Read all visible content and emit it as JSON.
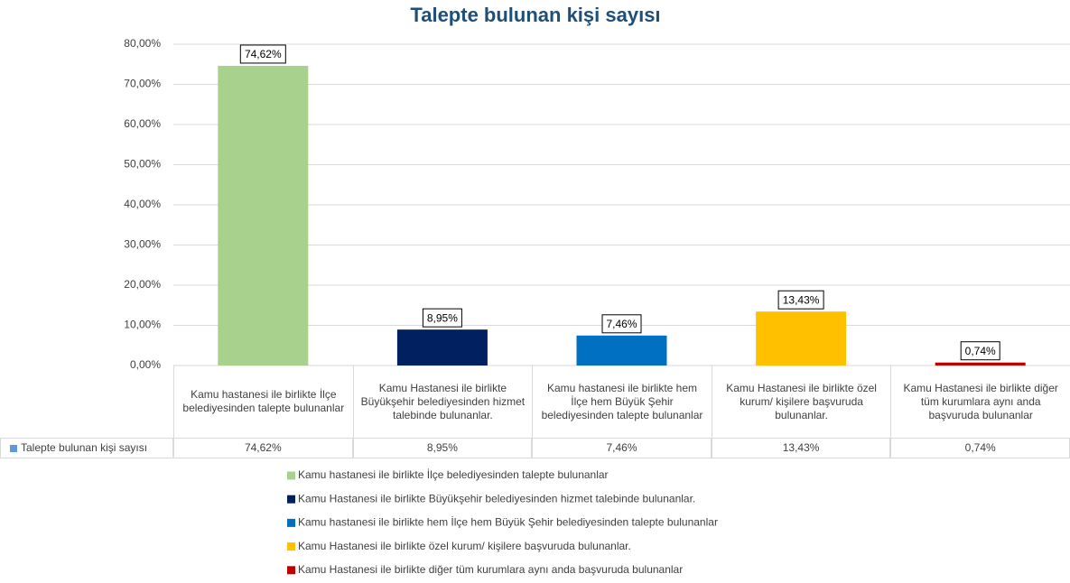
{
  "chart_data": {
    "type": "bar",
    "title": "Talepte bulunan kişi sayısı",
    "categories": [
      "Kamu hastanesi ile birlikte İlçe belediyesinden talepte bulunanlar",
      "Kamu Hastanesi ile birlikte Büyükşehir belediyesinden hizmet talebinde bulunanlar.",
      "Kamu hastanesi ile birlikte hem İlçe hem Büyük Şehir belediyesinden talepte bulunanlar",
      "Kamu Hastanesi ile birlikte özel kurum/ kişilere başvuruda bulunanlar.",
      "Kamu Hastanesi ile birlikte diğer tüm kurumlara aynı anda başvuruda bulunanlar"
    ],
    "series": [
      {
        "name": "Talepte bulunan kişi sayısı",
        "color": "#5b9bd5",
        "values": [
          74.62,
          8.95,
          7.46,
          13.43,
          0.74
        ],
        "value_labels": [
          "74,62%",
          "8,95%",
          "7,46%",
          "13,43%",
          "0,74%"
        ]
      }
    ],
    "colors": [
      "#a9d18e",
      "#002060",
      "#0070c0",
      "#ffc000",
      "#c00000"
    ],
    "legend": [
      "Kamu hastanesi ile birlikte İlçe belediyesinden talepte bulunanlar",
      "Kamu Hastanesi ile birlikte Büyükşehir belediyesinden hizmet talebinde bulunanlar.",
      "Kamu hastanesi ile birlikte hem İlçe hem Büyük Şehir belediyesinden talepte bulunanlar",
      "Kamu Hastanesi ile birlikte  özel kurum/ kişilere  başvuruda bulunanlar.",
      "Kamu Hastanesi ile birlikte diğer tüm kurumlara aynı anda başvuruda bulunanlar"
    ],
    "ylim": [
      0,
      80
    ],
    "yticks": [
      {
        "value": 0,
        "label": "0,00%"
      },
      {
        "value": 10,
        "label": "10,00%"
      },
      {
        "value": 20,
        "label": "20,00%"
      },
      {
        "value": 30,
        "label": "30,00%"
      },
      {
        "value": 40,
        "label": "40,00%"
      },
      {
        "value": 50,
        "label": "50,00%"
      },
      {
        "value": 60,
        "label": "60,00%"
      },
      {
        "value": 70,
        "label": "70,00%"
      },
      {
        "value": 80,
        "label": "80,00%"
      }
    ],
    "grid": true
  }
}
